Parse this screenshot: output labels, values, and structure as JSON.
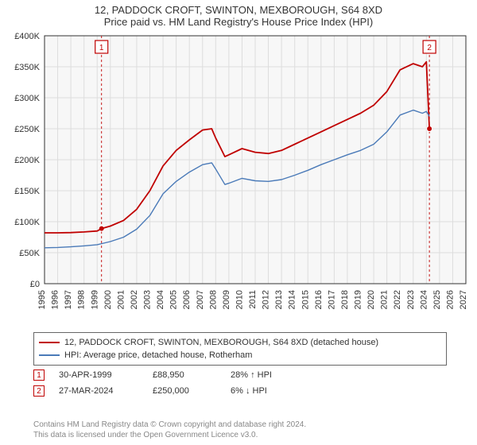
{
  "title_line1": "12, PADDOCK CROFT, SWINTON, MEXBOROUGH, S64 8XD",
  "title_line2": "Price paid vs. HM Land Registry's House Price Index (HPI)",
  "chart": {
    "type": "line",
    "plot_bg": "#f7f7f7",
    "axis_color": "#333333",
    "grid_color": "#dddddd",
    "label_color": "#333333",
    "x_years": [
      1995,
      1996,
      1997,
      1998,
      1999,
      2000,
      2001,
      2002,
      2003,
      2004,
      2005,
      2006,
      2007,
      2008,
      2009,
      2010,
      2011,
      2012,
      2013,
      2014,
      2015,
      2016,
      2017,
      2018,
      2019,
      2020,
      2021,
      2022,
      2023,
      2024,
      2025,
      2026,
      2027
    ],
    "xlim": [
      1995,
      2027
    ],
    "ylim": [
      0,
      400000
    ],
    "ytick_step": 50000,
    "ytick_labels": [
      "£0",
      "£50K",
      "£100K",
      "£150K",
      "£200K",
      "£250K",
      "£300K",
      "£350K",
      "£400K"
    ],
    "tick_fontsize": 11,
    "series": [
      {
        "name": "12, PADDOCK CROFT, SWINTON, MEXBOROUGH, S64 8XD (detached house)",
        "color": "#c00000",
        "line_width": 1.8,
        "points": [
          [
            1995,
            82000
          ],
          [
            1996,
            82000
          ],
          [
            1997,
            82500
          ],
          [
            1998,
            83500
          ],
          [
            1999,
            85000
          ],
          [
            1999.33,
            88950
          ],
          [
            2000,
            93000
          ],
          [
            2001,
            102000
          ],
          [
            2002,
            120000
          ],
          [
            2003,
            150000
          ],
          [
            2004,
            190000
          ],
          [
            2005,
            215000
          ],
          [
            2006,
            232000
          ],
          [
            2007,
            248000
          ],
          [
            2007.7,
            250000
          ],
          [
            2008,
            235000
          ],
          [
            2008.7,
            205000
          ],
          [
            2009,
            208000
          ],
          [
            2010,
            218000
          ],
          [
            2011,
            212000
          ],
          [
            2012,
            210000
          ],
          [
            2013,
            215000
          ],
          [
            2014,
            225000
          ],
          [
            2015,
            235000
          ],
          [
            2016,
            245000
          ],
          [
            2017,
            255000
          ],
          [
            2018,
            265000
          ],
          [
            2019,
            275000
          ],
          [
            2020,
            288000
          ],
          [
            2021,
            310000
          ],
          [
            2022,
            345000
          ],
          [
            2023,
            355000
          ],
          [
            2023.7,
            350000
          ],
          [
            2024,
            358000
          ],
          [
            2024.23,
            250000
          ]
        ]
      },
      {
        "name": "HPI: Average price, detached house, Rotherham",
        "color": "#4a7ab8",
        "line_width": 1.4,
        "points": [
          [
            1995,
            58000
          ],
          [
            1996,
            58500
          ],
          [
            1997,
            59500
          ],
          [
            1998,
            61000
          ],
          [
            1999,
            63000
          ],
          [
            2000,
            68000
          ],
          [
            2001,
            75000
          ],
          [
            2002,
            88000
          ],
          [
            2003,
            110000
          ],
          [
            2004,
            145000
          ],
          [
            2005,
            165000
          ],
          [
            2006,
            180000
          ],
          [
            2007,
            192000
          ],
          [
            2007.7,
            195000
          ],
          [
            2008,
            185000
          ],
          [
            2008.7,
            160000
          ],
          [
            2009,
            162000
          ],
          [
            2010,
            170000
          ],
          [
            2011,
            166000
          ],
          [
            2012,
            165000
          ],
          [
            2013,
            168000
          ],
          [
            2014,
            175000
          ],
          [
            2015,
            183000
          ],
          [
            2016,
            192000
          ],
          [
            2017,
            200000
          ],
          [
            2018,
            208000
          ],
          [
            2019,
            215000
          ],
          [
            2020,
            225000
          ],
          [
            2021,
            245000
          ],
          [
            2022,
            272000
          ],
          [
            2023,
            280000
          ],
          [
            2023.7,
            275000
          ],
          [
            2024,
            278000
          ],
          [
            2024.23,
            270000
          ]
        ]
      }
    ],
    "markers": [
      {
        "num": "1",
        "x": 1999.33,
        "y": 88950,
        "label_y_offset": -280,
        "dash_color": "#c00000"
      },
      {
        "num": "2",
        "x": 2024.23,
        "y": 250000,
        "label_y_offset": -300,
        "dash_color": "#c00000"
      }
    ]
  },
  "legend": {
    "items": [
      {
        "color": "#c00000",
        "label": "12, PADDOCK CROFT, SWINTON, MEXBOROUGH, S64 8XD (detached house)"
      },
      {
        "color": "#4a7ab8",
        "label": "HPI: Average price, detached house, Rotherham"
      }
    ]
  },
  "datapoints": [
    {
      "num": "1",
      "date": "30-APR-1999",
      "price": "£88,950",
      "hpi": "28% ↑ HPI"
    },
    {
      "num": "2",
      "date": "27-MAR-2024",
      "price": "£250,000",
      "hpi": "6% ↓ HPI"
    }
  ],
  "footer_line1": "Contains HM Land Registry data © Crown copyright and database right 2024.",
  "footer_line2": "This data is licensed under the Open Government Licence v3.0."
}
